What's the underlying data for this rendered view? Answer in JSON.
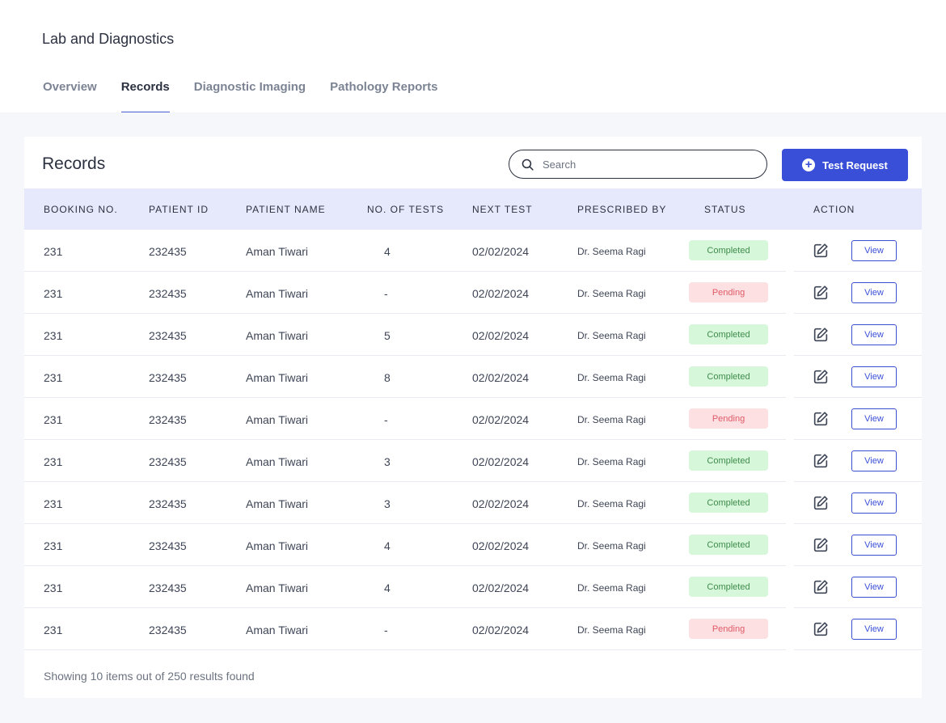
{
  "header": {
    "title": "Lab and Diagnostics",
    "tabs": [
      {
        "label": "Overview",
        "active": false
      },
      {
        "label": "Records",
        "active": true
      },
      {
        "label": "Diagnostic Imaging",
        "active": false
      },
      {
        "label": "Pathology Reports",
        "active": false
      }
    ]
  },
  "records": {
    "title": "Records",
    "search_placeholder": "Search",
    "test_request_label": "Test Request",
    "columns": {
      "booking": "BOOKING NO.",
      "patient_id": "PATIENT ID",
      "patient_name": "PATIENT NAME",
      "tests": "NO. OF TESTS",
      "next_test": "NEXT TEST",
      "prescribed_by": "PRESCRIBED BY",
      "status": "STATUS",
      "action": "ACTION"
    },
    "rows": [
      {
        "booking": "231",
        "patient_id": "232435",
        "patient_name": "Aman Tiwari",
        "tests": "4",
        "next_test": "02/02/2024",
        "prescribed_by": "Dr. Seema Ragi",
        "status": "Completed",
        "view_label": "View"
      },
      {
        "booking": "231",
        "patient_id": "232435",
        "patient_name": "Aman Tiwari",
        "tests": "-",
        "next_test": "02/02/2024",
        "prescribed_by": "Dr. Seema Ragi",
        "status": "Pending",
        "view_label": "View"
      },
      {
        "booking": "231",
        "patient_id": "232435",
        "patient_name": "Aman Tiwari",
        "tests": "5",
        "next_test": "02/02/2024",
        "prescribed_by": "Dr. Seema Ragi",
        "status": "Completed",
        "view_label": "View"
      },
      {
        "booking": "231",
        "patient_id": "232435",
        "patient_name": "Aman Tiwari",
        "tests": "8",
        "next_test": "02/02/2024",
        "prescribed_by": "Dr. Seema Ragi",
        "status": "Completed",
        "view_label": "View"
      },
      {
        "booking": "231",
        "patient_id": "232435",
        "patient_name": "Aman Tiwari",
        "tests": "-",
        "next_test": "02/02/2024",
        "prescribed_by": "Dr. Seema Ragi",
        "status": "Pending",
        "view_label": "View"
      },
      {
        "booking": "231",
        "patient_id": "232435",
        "patient_name": "Aman Tiwari",
        "tests": "3",
        "next_test": "02/02/2024",
        "prescribed_by": "Dr. Seema Ragi",
        "status": "Completed",
        "view_label": "View"
      },
      {
        "booking": "231",
        "patient_id": "232435",
        "patient_name": "Aman Tiwari",
        "tests": "3",
        "next_test": "02/02/2024",
        "prescribed_by": "Dr. Seema Ragi",
        "status": "Completed",
        "view_label": "View"
      },
      {
        "booking": "231",
        "patient_id": "232435",
        "patient_name": "Aman Tiwari",
        "tests": "4",
        "next_test": "02/02/2024",
        "prescribed_by": "Dr. Seema Ragi",
        "status": "Completed",
        "view_label": "View"
      },
      {
        "booking": "231",
        "patient_id": "232435",
        "patient_name": "Aman Tiwari",
        "tests": "4",
        "next_test": "02/02/2024",
        "prescribed_by": "Dr. Seema Ragi",
        "status": "Completed",
        "view_label": "View"
      },
      {
        "booking": "231",
        "patient_id": "232435",
        "patient_name": "Aman Tiwari",
        "tests": "-",
        "next_test": "02/02/2024",
        "prescribed_by": "Dr. Seema Ragi",
        "status": "Pending",
        "view_label": "View"
      }
    ],
    "footer_text": "Showing 10 items out of 250 results found"
  },
  "colors": {
    "accent": "#3a4fd8",
    "header_bg": "#e6e9fb",
    "completed_bg": "#d6f7d9",
    "completed_text": "#3f8b4c",
    "pending_bg": "#fde0e2",
    "pending_text": "#e05a67"
  },
  "icons": {
    "search": "search-icon",
    "add": "plus-circle-icon",
    "edit": "edit-icon"
  }
}
